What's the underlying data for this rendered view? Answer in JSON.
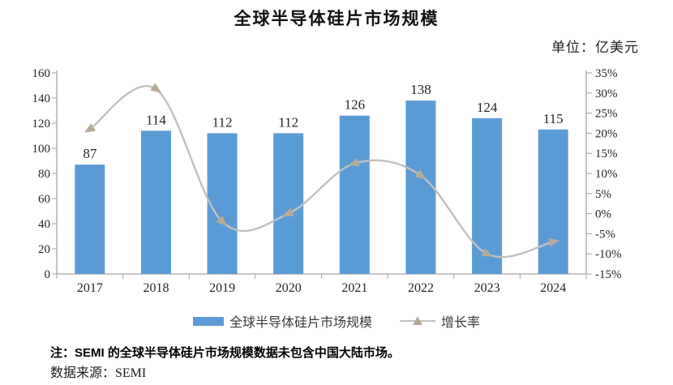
{
  "title": "全球半导体硅片市场规模",
  "unit_label": "单位：亿美元",
  "chart_data": {
    "type": "bar",
    "subtype": "bar-line-combo",
    "title": "全球半导体硅片市场规模",
    "categories": [
      "2017",
      "2018",
      "2019",
      "2020",
      "2021",
      "2022",
      "2023",
      "2024"
    ],
    "series": [
      {
        "name": "全球半导体硅片市场规模",
        "type": "bar",
        "axis": "left",
        "values": [
          87,
          114,
          112,
          112,
          126,
          138,
          124,
          115
        ],
        "data_labels": [
          87,
          114,
          112,
          112,
          126,
          138,
          124,
          115
        ]
      },
      {
        "name": "增长率",
        "type": "line",
        "axis": "right",
        "unit": "%",
        "smooth": true,
        "marker": "triangle",
        "values": [
          21,
          31,
          -2,
          0,
          12.5,
          9.5,
          -10,
          -7
        ]
      }
    ],
    "left_axis": {
      "min": 0,
      "max": 160,
      "step": 20,
      "labels": [
        "0",
        "20",
        "40",
        "60",
        "80",
        "100",
        "120",
        "140",
        "160"
      ]
    },
    "right_axis": {
      "min": -15,
      "max": 35,
      "step": 5,
      "format": "percent",
      "labels": [
        "-15%",
        "-10%",
        "-5%",
        "0%",
        "5%",
        "10%",
        "15%",
        "20%",
        "25%",
        "30%",
        "35%"
      ]
    },
    "grid": false,
    "legend_position": "bottom"
  },
  "legend": {
    "bar_label": "全球半导体硅片市场规模",
    "line_label": "增长率"
  },
  "notes": {
    "note": "注：SEMI 的全球半导体硅片市场规模数据未包含中国大陆市场。",
    "source": "数据来源：SEMI"
  },
  "colors": {
    "bar": "#5b9bd5",
    "line": "#c2c1c0",
    "marker": "#b4ab97",
    "axis": "#a6a6a6",
    "text": "#262626"
  }
}
